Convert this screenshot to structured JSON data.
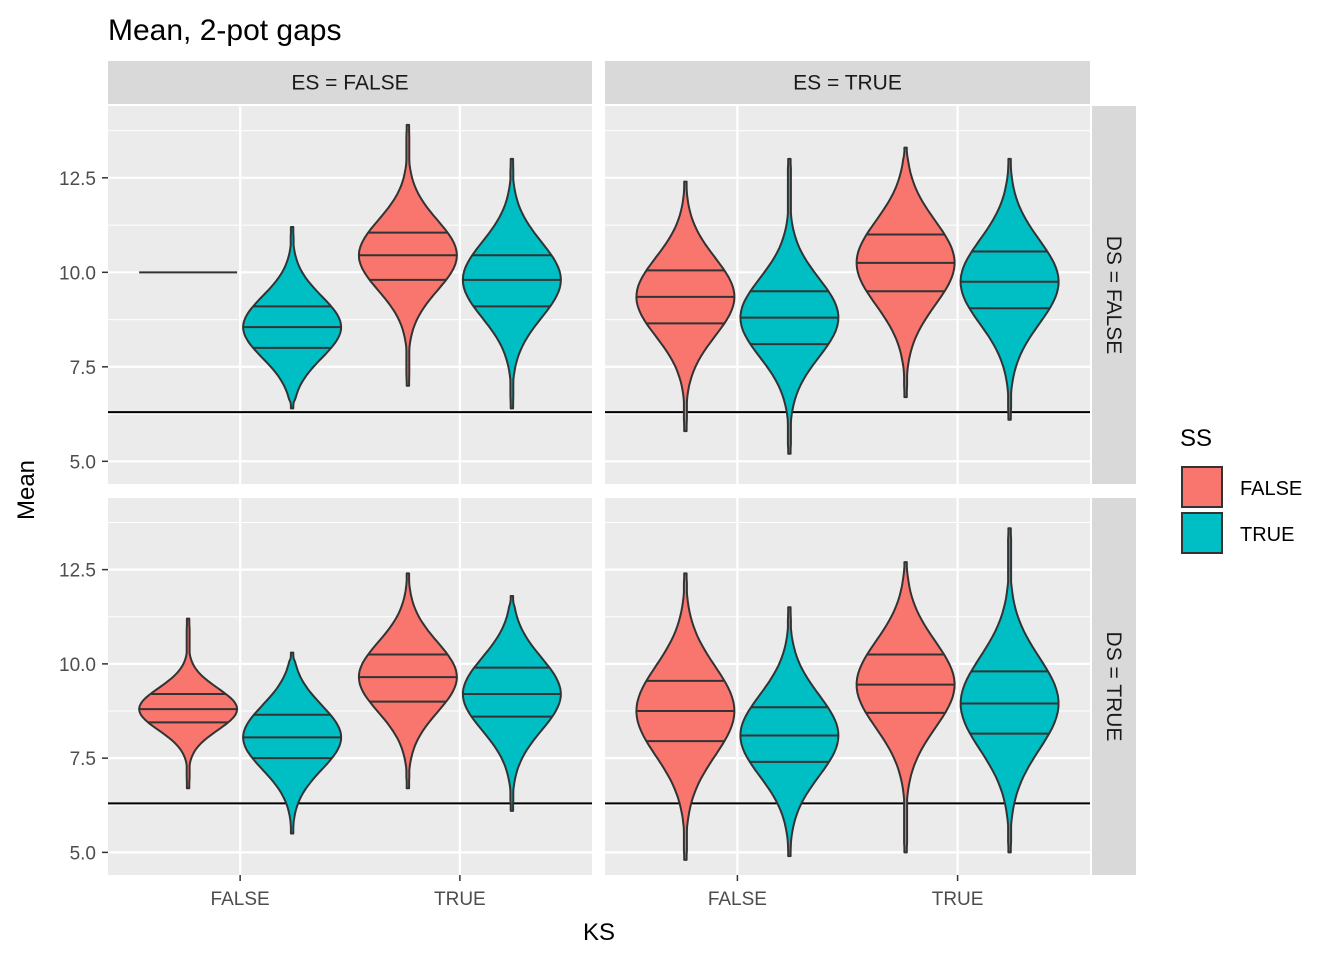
{
  "chart_data": {
    "type": "violin",
    "title": "Mean, 2-pot gaps",
    "xlabel": "KS",
    "ylabel": "Mean",
    "categories": [
      "FALSE",
      "TRUE"
    ],
    "ylim": [
      4.4,
      14.4
    ],
    "yticks": [
      "5.0",
      "7.5",
      "10.0",
      "12.5"
    ],
    "ytick_values": [
      5.0,
      7.5,
      10.0,
      12.5
    ],
    "reference_line": 6.3,
    "col_facet_labels": [
      "ES = FALSE",
      "ES = TRUE"
    ],
    "row_facet_labels": [
      "DS = FALSE",
      "DS = TRUE"
    ],
    "legend": {
      "title": "SS",
      "entries": [
        {
          "label": "FALSE",
          "color": "#F8766D"
        },
        {
          "label": "TRUE",
          "color": "#00BFC4"
        }
      ],
      "placement": "right"
    },
    "grid": true,
    "panels": [
      {
        "row": 0,
        "col": 0,
        "violins": [
          {
            "ks": "FALSE",
            "ss": "FALSE",
            "min": 10.0,
            "max": 10.0,
            "q1": 10.0,
            "median": 10.0,
            "q3": 10.0,
            "degenerate": true
          },
          {
            "ks": "FALSE",
            "ss": "TRUE",
            "min": 6.4,
            "max": 11.2,
            "q1": 8.0,
            "median": 8.55,
            "q3": 9.1
          },
          {
            "ks": "TRUE",
            "ss": "FALSE",
            "min": 7.0,
            "max": 13.9,
            "q1": 9.8,
            "median": 10.45,
            "q3": 11.05
          },
          {
            "ks": "TRUE",
            "ss": "TRUE",
            "min": 6.4,
            "max": 13.0,
            "q1": 9.1,
            "median": 9.8,
            "q3": 10.45
          }
        ]
      },
      {
        "row": 0,
        "col": 1,
        "violins": [
          {
            "ks": "FALSE",
            "ss": "FALSE",
            "min": 5.8,
            "max": 12.4,
            "q1": 8.65,
            "median": 9.35,
            "q3": 10.05
          },
          {
            "ks": "FALSE",
            "ss": "TRUE",
            "min": 5.2,
            "max": 13.0,
            "q1": 8.1,
            "median": 8.8,
            "q3": 9.5
          },
          {
            "ks": "TRUE",
            "ss": "FALSE",
            "min": 6.7,
            "max": 13.3,
            "q1": 9.5,
            "median": 10.25,
            "q3": 11.0
          },
          {
            "ks": "TRUE",
            "ss": "TRUE",
            "min": 6.1,
            "max": 13.0,
            "q1": 9.05,
            "median": 9.75,
            "q3": 10.55
          }
        ]
      },
      {
        "row": 1,
        "col": 0,
        "violins": [
          {
            "ks": "FALSE",
            "ss": "FALSE",
            "min": 6.7,
            "max": 11.2,
            "q1": 8.45,
            "median": 8.8,
            "q3": 9.2
          },
          {
            "ks": "FALSE",
            "ss": "TRUE",
            "min": 5.5,
            "max": 10.3,
            "q1": 7.5,
            "median": 8.05,
            "q3": 8.65
          },
          {
            "ks": "TRUE",
            "ss": "FALSE",
            "min": 6.7,
            "max": 12.4,
            "q1": 9.0,
            "median": 9.65,
            "q3": 10.25
          },
          {
            "ks": "TRUE",
            "ss": "TRUE",
            "min": 6.1,
            "max": 11.8,
            "q1": 8.6,
            "median": 9.2,
            "q3": 9.9
          }
        ]
      },
      {
        "row": 1,
        "col": 1,
        "violins": [
          {
            "ks": "FALSE",
            "ss": "FALSE",
            "min": 4.8,
            "max": 12.4,
            "q1": 7.95,
            "median": 8.75,
            "q3": 9.55
          },
          {
            "ks": "FALSE",
            "ss": "TRUE",
            "min": 4.9,
            "max": 11.5,
            "q1": 7.4,
            "median": 8.1,
            "q3": 8.85
          },
          {
            "ks": "TRUE",
            "ss": "FALSE",
            "min": 5.0,
            "max": 12.7,
            "q1": 8.7,
            "median": 9.45,
            "q3": 10.25
          },
          {
            "ks": "TRUE",
            "ss": "TRUE",
            "min": 5.0,
            "max": 13.6,
            "q1": 8.15,
            "median": 8.95,
            "q3": 9.8
          }
        ]
      }
    ]
  }
}
